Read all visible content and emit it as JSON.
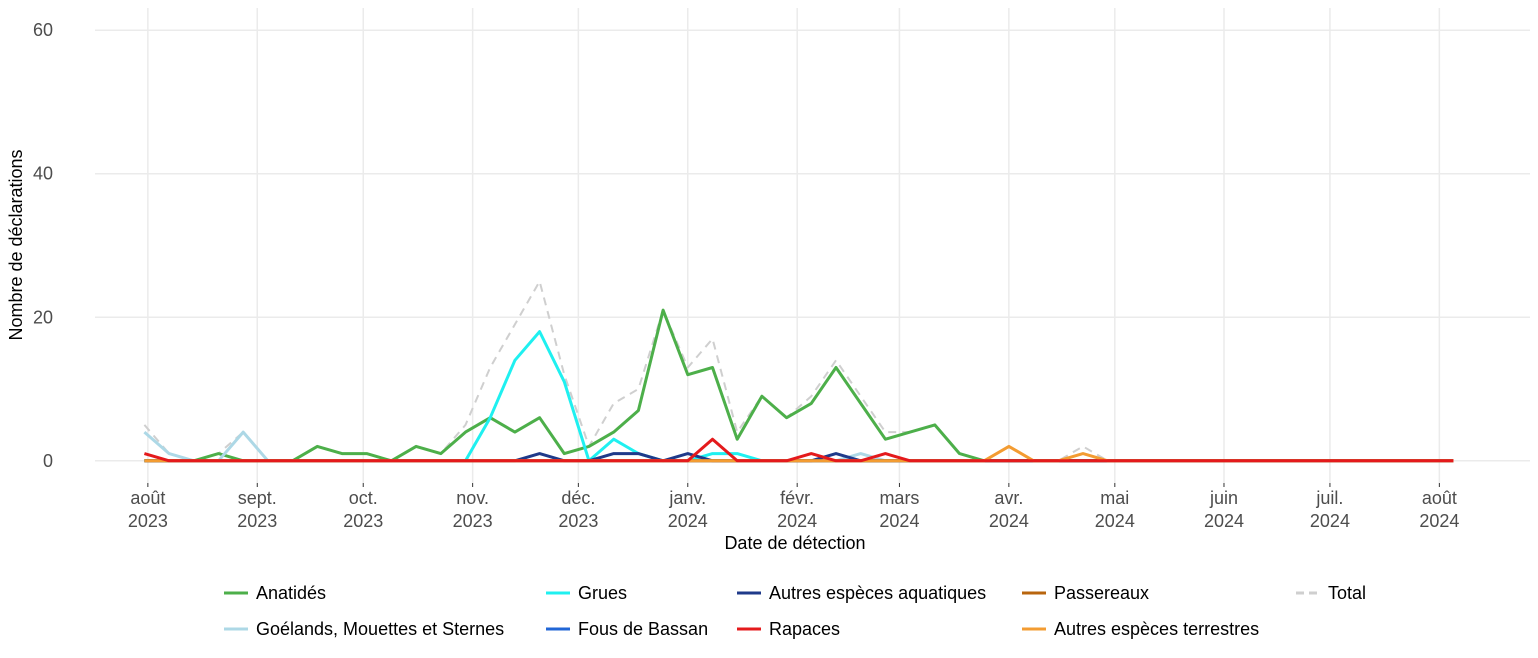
{
  "chart_data": {
    "type": "line",
    "x_label": "Date de détection",
    "y_label": "Nombre de déclarations",
    "ylim": [
      -3.1,
      63.1
    ],
    "yticks": [
      0,
      20,
      40,
      60
    ],
    "xlim": [
      -2,
      56.1
    ],
    "xticks": [
      {
        "value": 0.14,
        "label": "août\n2023"
      },
      {
        "value": 4.57,
        "label": "sept.\n2023"
      },
      {
        "value": 8.86,
        "label": "oct.\n2023"
      },
      {
        "value": 13.29,
        "label": "nov.\n2023"
      },
      {
        "value": 17.57,
        "label": "déc.\n2023"
      },
      {
        "value": 22,
        "label": "janv.\n2024"
      },
      {
        "value": 26.43,
        "label": "févr.\n2024"
      },
      {
        "value": 30.57,
        "label": "mars\n2024"
      },
      {
        "value": 35,
        "label": "avr.\n2024"
      },
      {
        "value": 39.29,
        "label": "mai\n2024"
      },
      {
        "value": 43.71,
        "label": "juin\n2024"
      },
      {
        "value": 48,
        "label": "juil.\n2024"
      },
      {
        "value": 52.43,
        "label": "août\n2024"
      }
    ],
    "grid": true,
    "legend": "bottom",
    "series": [
      {
        "name": "Total",
        "color": "#cfcfcf",
        "dashed": true,
        "values": [
          5,
          1,
          0,
          1,
          4,
          0,
          0,
          2,
          1,
          1,
          0,
          2,
          1,
          5,
          13,
          19,
          25,
          12,
          2,
          8,
          10,
          21,
          13,
          17,
          4,
          9,
          6,
          9,
          14,
          9,
          4,
          4,
          5,
          1,
          0,
          2,
          0,
          0,
          2,
          0,
          0,
          0,
          0,
          0,
          0,
          0,
          0,
          0,
          0,
          0,
          0,
          0,
          0,
          0
        ]
      },
      {
        "name": "Anatidés",
        "color": "#4daf4a",
        "values": [
          0,
          0,
          0,
          1,
          0,
          0,
          0,
          2,
          1,
          1,
          0,
          2,
          1,
          4,
          6,
          4,
          6,
          1,
          2,
          4,
          7,
          21,
          12,
          13,
          3,
          9,
          6,
          8,
          13,
          8,
          3,
          4,
          5,
          1,
          0,
          0,
          0,
          0,
          0,
          0,
          0,
          0,
          0,
          0,
          0,
          0,
          0,
          0,
          0,
          0,
          0,
          0,
          0,
          0
        ]
      },
      {
        "name": "Goélands, Mouettes et Sternes",
        "color": "#add8e6",
        "values": [
          4,
          1,
          0,
          0,
          4,
          0,
          0,
          0,
          0,
          0,
          0,
          0,
          0,
          0,
          0,
          0,
          0,
          0,
          0,
          0,
          0,
          0,
          0,
          0,
          0,
          0,
          0,
          0,
          0,
          1,
          0,
          0,
          0,
          0,
          0,
          0,
          0,
          0,
          0,
          0,
          0,
          0,
          0,
          0,
          0,
          0,
          0,
          0,
          0,
          0,
          0,
          0,
          0,
          0
        ]
      },
      {
        "name": "Grues",
        "color": "#1ff0f0",
        "values": [
          0,
          0,
          0,
          0,
          0,
          0,
          0,
          0,
          0,
          0,
          0,
          0,
          0,
          0,
          6,
          14,
          18,
          11,
          0,
          3,
          1,
          0,
          0,
          1,
          1,
          0,
          0,
          0,
          0,
          0,
          0,
          0,
          0,
          0,
          0,
          0,
          0,
          0,
          0,
          0,
          0,
          0,
          0,
          0,
          0,
          0,
          0,
          0,
          0,
          0,
          0,
          0,
          0,
          0
        ]
      },
      {
        "name": "Fous de Bassan",
        "color": "#2166d6",
        "values": [
          0,
          0,
          0,
          0,
          0,
          0,
          0,
          0,
          0,
          0,
          0,
          0,
          0,
          0,
          0,
          0,
          0,
          0,
          0,
          0,
          0,
          0,
          0,
          0,
          0,
          0,
          0,
          0,
          0,
          0,
          0,
          0,
          0,
          0,
          0,
          0,
          0,
          0,
          0,
          0,
          0,
          0,
          0,
          0,
          0,
          0,
          0,
          0,
          0,
          0,
          0,
          0,
          0,
          0
        ]
      },
      {
        "name": "Autres espèces aquatiques",
        "color": "#1f3a8a",
        "values": [
          0,
          0,
          0,
          0,
          0,
          0,
          0,
          0,
          0,
          0,
          0,
          0,
          0,
          0,
          0,
          0,
          1,
          0,
          0,
          1,
          1,
          0,
          1,
          0,
          0,
          0,
          0,
          0,
          1,
          0,
          0,
          0,
          0,
          0,
          0,
          0,
          0,
          0,
          0,
          0,
          0,
          0,
          0,
          0,
          0,
          0,
          0,
          0,
          0,
          0,
          0,
          0,
          0,
          0
        ]
      },
      {
        "name": "Passereaux",
        "color": "#b8650e",
        "values": [
          0,
          0,
          0,
          0,
          0,
          0,
          0,
          0,
          0,
          0,
          0,
          0,
          0,
          0,
          0,
          0,
          0,
          0,
          0,
          0,
          0,
          0,
          0,
          0,
          0,
          0,
          0,
          0,
          0,
          0,
          0,
          0,
          0,
          0,
          0,
          0,
          0,
          0,
          0,
          0,
          0,
          0,
          0,
          0,
          0,
          0,
          0,
          0,
          0,
          0,
          0,
          0,
          0,
          0
        ]
      },
      {
        "name": "Autres espèces terrestres",
        "color": "#f39c32",
        "values": [
          0,
          0,
          0,
          0,
          0,
          0,
          0,
          0,
          0,
          0,
          0,
          0,
          0,
          0,
          0,
          0,
          0,
          0,
          0,
          0,
          0,
          0,
          0,
          0,
          0,
          0,
          0,
          0,
          0,
          0,
          0,
          0,
          0,
          0,
          0,
          2,
          0,
          0,
          1,
          0,
          0,
          0,
          0,
          0,
          0,
          0,
          0,
          0,
          0,
          0,
          0,
          0,
          0,
          0
        ]
      },
      {
        "name": "Rapaces",
        "color": "#e41a1c",
        "values": [
          1,
          0,
          0,
          0,
          0,
          0,
          0,
          0,
          0,
          0,
          0,
          0,
          0,
          0,
          0,
          0,
          0,
          0,
          0,
          0,
          0,
          0,
          0,
          3,
          0,
          0,
          0,
          1,
          0,
          0,
          1,
          0,
          0,
          0,
          0,
          0,
          0,
          0,
          0,
          0,
          0,
          0,
          0,
          0,
          0,
          0,
          0,
          0,
          0,
          0,
          0,
          0,
          0,
          0
        ]
      }
    ]
  }
}
